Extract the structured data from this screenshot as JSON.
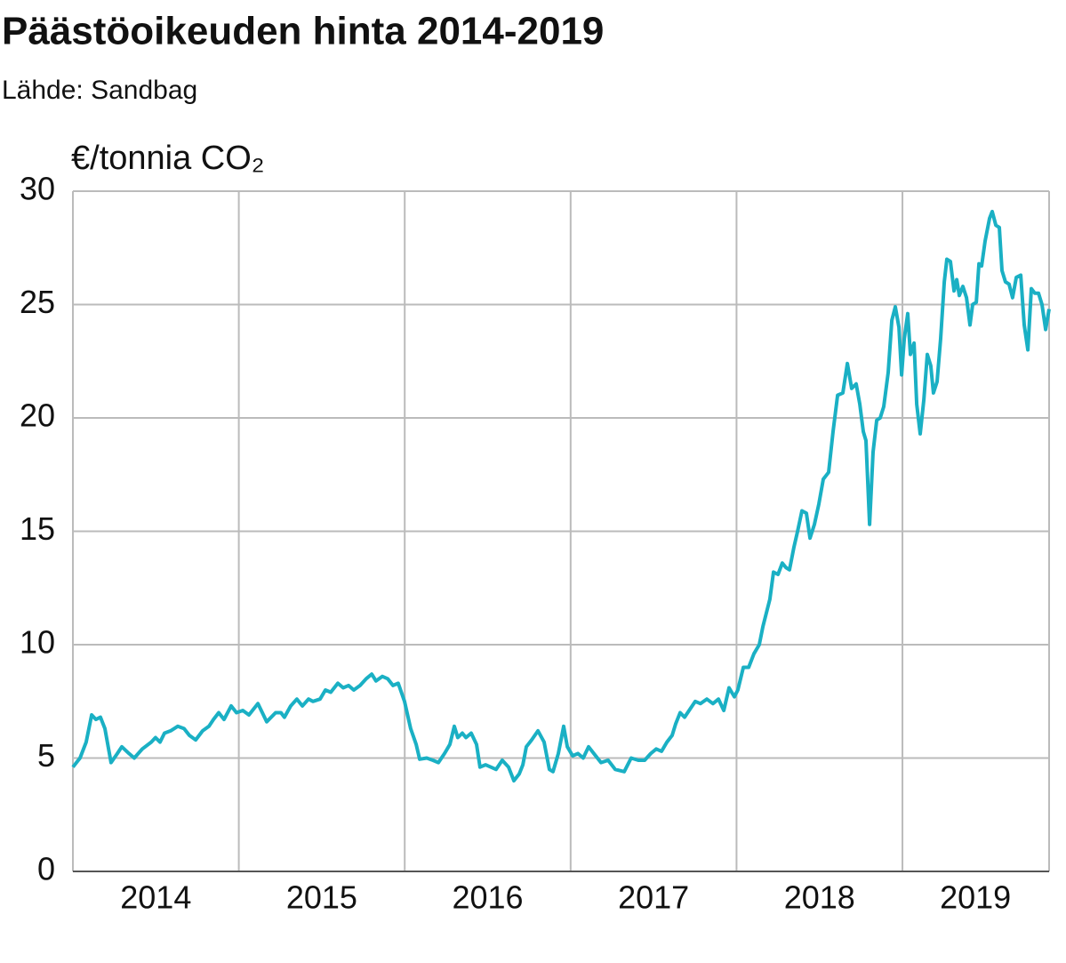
{
  "chart_data": {
    "type": "line",
    "title": "Päästöoikeuden hinta 2014-2019",
    "subtitle": "Lähde: Sandbag",
    "y_label": "€/tonnia CO₂",
    "color": "#1ab0c4",
    "xlim": [
      2014,
      2019.884
    ],
    "xticks": [
      {
        "value": 2014.5,
        "label": "2014"
      },
      {
        "value": 2015.5,
        "label": "2015"
      },
      {
        "value": 2016.5,
        "label": "2016"
      },
      {
        "value": 2017.5,
        "label": "2017"
      },
      {
        "value": 2018.5,
        "label": "2018"
      },
      {
        "value": 2019.44,
        "label": "2019"
      }
    ],
    "xgrid": [
      2015,
      2016,
      2017,
      2018,
      2019
    ],
    "ylim": [
      0,
      30
    ],
    "yticks": [
      0,
      5,
      10,
      15,
      20,
      25,
      30
    ],
    "grid": true,
    "x": [
      2014.0,
      2014.043,
      2014.08,
      2014.113,
      2014.139,
      2014.166,
      2014.193,
      2014.23,
      2014.268,
      2014.295,
      2014.338,
      2014.37,
      2014.418,
      2014.472,
      2014.498,
      2014.525,
      2014.552,
      2014.589,
      2014.632,
      2014.67,
      2014.702,
      2014.74,
      2014.782,
      2014.82,
      2014.847,
      2014.879,
      2014.911,
      2014.954,
      2014.986,
      2015.024,
      2015.061,
      2015.115,
      2015.168,
      2015.222,
      2015.254,
      2015.275,
      2015.313,
      2015.35,
      2015.383,
      2015.42,
      2015.447,
      2015.49,
      2015.522,
      2015.554,
      2015.597,
      2015.629,
      2015.661,
      2015.693,
      2015.731,
      2015.768,
      2015.801,
      2015.827,
      2015.865,
      2015.897,
      2015.929,
      2015.961,
      2015.999,
      2016.036,
      2016.069,
      2016.09,
      2016.133,
      2016.17,
      2016.203,
      2016.24,
      2016.272,
      2016.299,
      2016.32,
      2016.347,
      2016.369,
      2016.401,
      2016.433,
      2016.454,
      2016.487,
      2016.519,
      2016.551,
      2016.588,
      2016.626,
      2016.658,
      2016.69,
      2016.712,
      2016.733,
      2016.765,
      2016.803,
      2016.84,
      2016.872,
      2016.894,
      2016.926,
      2016.958,
      2016.98,
      2017.012,
      2017.044,
      2017.076,
      2017.108,
      2017.14,
      2017.183,
      2017.226,
      2017.269,
      2017.323,
      2017.365,
      2017.408,
      2017.446,
      2017.483,
      2017.516,
      2017.548,
      2017.58,
      2017.612,
      2017.633,
      2017.66,
      2017.687,
      2017.714,
      2017.751,
      2017.783,
      2017.821,
      2017.858,
      2017.891,
      2017.923,
      2017.955,
      2017.987,
      2018.008,
      2018.041,
      2018.073,
      2018.105,
      2018.137,
      2018.159,
      2018.18,
      2018.201,
      2018.223,
      2018.25,
      2018.276,
      2018.298,
      2018.319,
      2018.346,
      2018.368,
      2018.394,
      2018.421,
      2018.443,
      2018.469,
      2018.496,
      2018.523,
      2018.555,
      2018.582,
      2018.609,
      2018.641,
      2018.668,
      2018.694,
      2018.721,
      2018.743,
      2018.764,
      2018.78,
      2018.802,
      2018.823,
      2018.845,
      2018.866,
      2018.887,
      2018.914,
      2018.936,
      2018.957,
      2018.979,
      2018.995,
      2019.011,
      2019.032,
      2019.048,
      2019.07,
      2019.086,
      2019.107,
      2019.129,
      2019.15,
      2019.171,
      2019.187,
      2019.209,
      2019.23,
      2019.252,
      2019.268,
      2019.289,
      2019.311,
      2019.327,
      2019.343,
      2019.364,
      2019.386,
      2019.407,
      2019.423,
      2019.445,
      2019.461,
      2019.477,
      2019.498,
      2019.525,
      2019.541,
      2019.563,
      2019.584,
      2019.6,
      2019.621,
      2019.643,
      2019.664,
      2019.686,
      2019.713,
      2019.734,
      2019.756,
      2019.777,
      2019.798,
      2019.82,
      2019.841,
      2019.863,
      2019.884
    ],
    "values": [
      4.6,
      5.0,
      5.7,
      6.9,
      6.7,
      6.8,
      6.3,
      4.8,
      5.2,
      5.5,
      5.2,
      5.0,
      5.4,
      5.7,
      5.9,
      5.7,
      6.1,
      6.2,
      6.4,
      6.3,
      6.0,
      5.8,
      6.2,
      6.4,
      6.7,
      7.0,
      6.7,
      7.3,
      7.0,
      7.1,
      6.9,
      7.4,
      6.6,
      7.0,
      7.0,
      6.8,
      7.3,
      7.6,
      7.3,
      7.6,
      7.5,
      7.6,
      8.0,
      7.9,
      8.3,
      8.1,
      8.2,
      8.0,
      8.2,
      8.5,
      8.7,
      8.4,
      8.6,
      8.5,
      8.2,
      8.3,
      7.5,
      6.3,
      5.6,
      4.95,
      5.0,
      4.9,
      4.8,
      5.2,
      5.6,
      6.4,
      5.9,
      6.1,
      5.9,
      6.1,
      5.6,
      4.6,
      4.7,
      4.6,
      4.5,
      4.9,
      4.6,
      4.0,
      4.3,
      4.7,
      5.5,
      5.8,
      6.2,
      5.7,
      4.5,
      4.4,
      5.2,
      6.4,
      5.5,
      5.1,
      5.2,
      5.0,
      5.5,
      5.2,
      4.8,
      4.9,
      4.5,
      4.4,
      5.0,
      4.9,
      4.9,
      5.2,
      5.4,
      5.3,
      5.7,
      6.0,
      6.5,
      7.0,
      6.8,
      7.1,
      7.5,
      7.4,
      7.6,
      7.4,
      7.6,
      7.1,
      8.1,
      7.7,
      8.0,
      9.0,
      9.0,
      9.6,
      10.0,
      10.8,
      11.4,
      12.0,
      13.2,
      13.1,
      13.6,
      13.4,
      13.3,
      14.3,
      15.0,
      15.9,
      15.8,
      14.7,
      15.3,
      16.2,
      17.3,
      17.6,
      19.4,
      21.0,
      21.1,
      22.4,
      21.3,
      21.5,
      20.6,
      19.4,
      19.0,
      15.3,
      18.5,
      19.9,
      20.0,
      20.5,
      22.0,
      24.3,
      24.9,
      24.0,
      21.9,
      23.5,
      24.6,
      22.8,
      23.3,
      20.6,
      19.3,
      20.8,
      22.8,
      22.3,
      21.1,
      21.6,
      23.5,
      26.0,
      27.0,
      26.9,
      25.6,
      26.1,
      25.4,
      25.8,
      25.3,
      24.1,
      25.0,
      25.1,
      26.8,
      26.7,
      27.8,
      28.8,
      29.1,
      28.5,
      28.4,
      26.5,
      26.0,
      25.9,
      25.3,
      26.2,
      26.3,
      24.1,
      23.0,
      25.7,
      25.5,
      25.5,
      25.0,
      23.9,
      24.8
    ]
  }
}
